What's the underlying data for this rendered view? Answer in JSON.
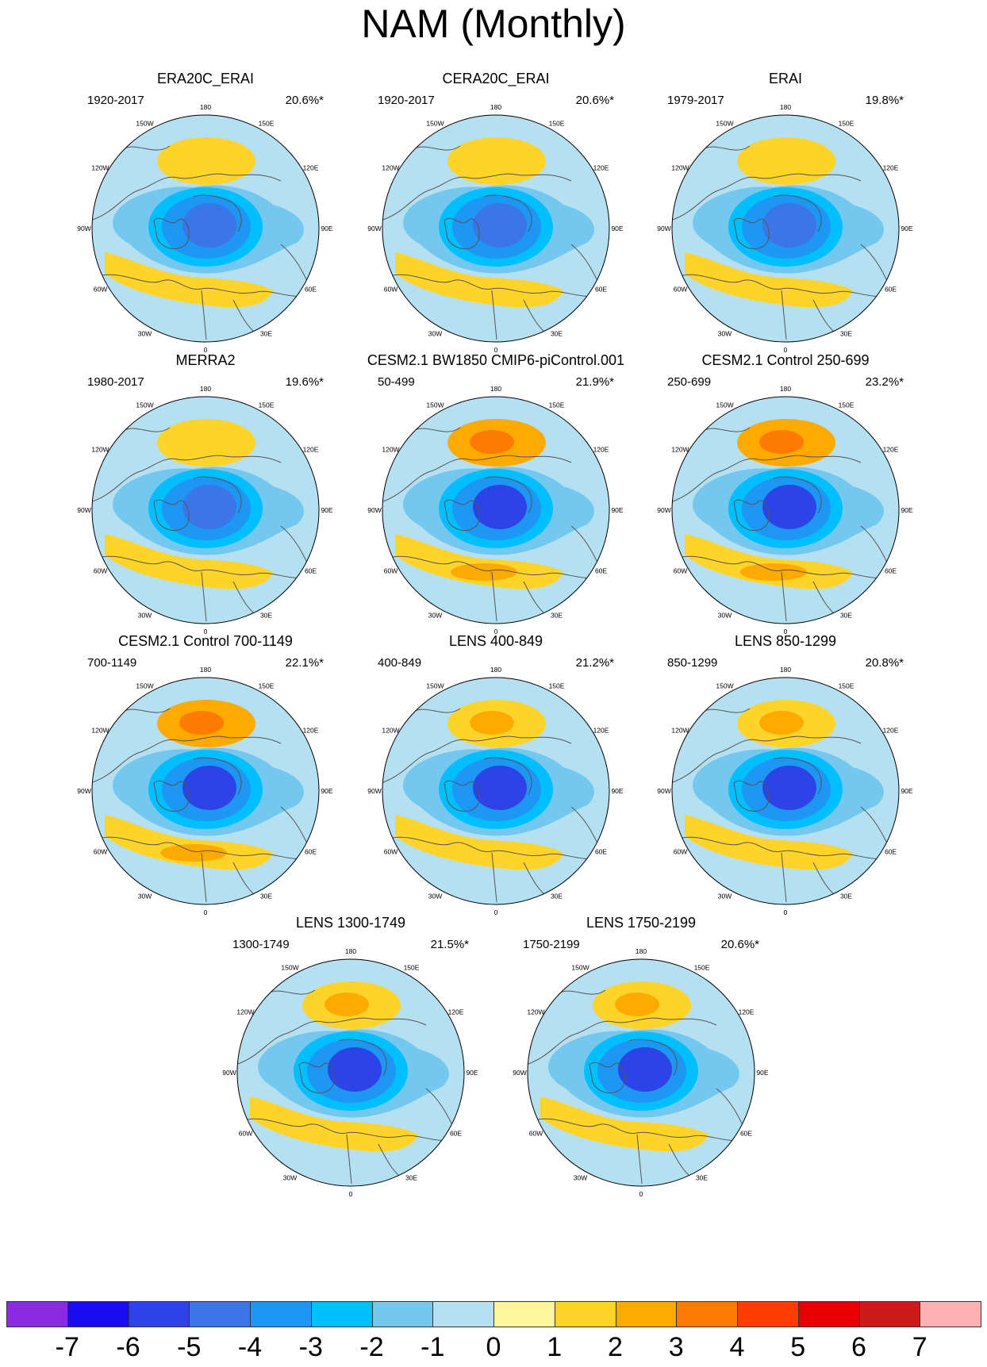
{
  "title": "NAM (Monthly)",
  "panels": [
    {
      "title": "ERA20C_ERAI",
      "period": "1920-2017",
      "variance": "20.6%*",
      "style": "weak"
    },
    {
      "title": "CERA20C_ERAI",
      "period": "1920-2017",
      "variance": "20.6%*",
      "style": "weak"
    },
    {
      "title": "ERAI",
      "period": "1979-2017",
      "variance": "19.8%*",
      "style": "weak"
    },
    {
      "title": "MERRA2",
      "period": "1980-2017",
      "variance": "19.6%*",
      "style": "weak"
    },
    {
      "title": "CESM2.1 BW1850 CMIP6-piControl.001",
      "period": "50-499",
      "variance": "21.9%*",
      "style": "strong"
    },
    {
      "title": "CESM2.1 Control 250-699",
      "period": "250-699",
      "variance": "23.2%*",
      "style": "strong"
    },
    {
      "title": "CESM2.1 Control 700-1149",
      "period": "700-1149",
      "variance": "22.1%*",
      "style": "strong"
    },
    {
      "title": "LENS 400-849",
      "period": "400-849",
      "variance": "21.2%*",
      "style": "medium"
    },
    {
      "title": "LENS 850-1299",
      "period": "850-1299",
      "variance": "20.8%*",
      "style": "medium"
    },
    {
      "title": "LENS 1300-1749",
      "period": "1300-1749",
      "variance": "21.5%*",
      "style": "medium"
    },
    {
      "title": "LENS 1750-2199",
      "period": "1750-2199",
      "variance": "20.6%*",
      "style": "medium"
    }
  ],
  "longitude_labels": [
    "180",
    "150E",
    "120E",
    "90E",
    "60E",
    "30E",
    "0",
    "30W",
    "60W",
    "90W",
    "120W",
    "150W"
  ],
  "colorbar": {
    "labels": [
      "-7",
      "-6",
      "-5",
      "-4",
      "-3",
      "-2",
      "-1",
      "0",
      "1",
      "2",
      "3",
      "4",
      "5",
      "6",
      "7"
    ],
    "colors": [
      "#8a2be2",
      "#1a0cf0",
      "#2c44e6",
      "#3a76e6",
      "#1e96f4",
      "#00bfff",
      "#74c7ef",
      "#b4e0f2",
      "#fff59a",
      "#ffd42a",
      "#ffaa00",
      "#ff7a00",
      "#ff3c00",
      "#e60000",
      "#cc1b1b",
      "#ffb0b0"
    ]
  }
}
